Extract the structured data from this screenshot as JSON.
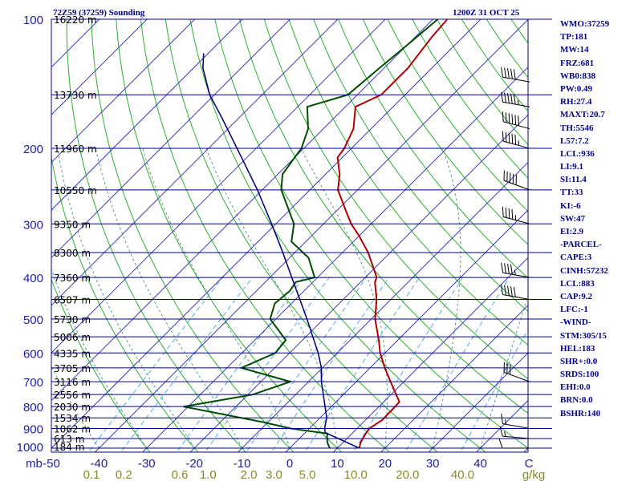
{
  "header": {
    "station_title": "72Z59 (37259) Sounding",
    "valid_time": "1200Z 31 OCT 25"
  },
  "stats": [
    "WMO:37259",
    "TP:181",
    "MW:14",
    "FRZ:681",
    "WB0:838",
    "PW:0.49",
    "RH:27.4",
    "MAXT:20.7",
    "TH:5546",
    "L57:7.2",
    "LCL:936",
    "LI:9.1",
    "SI:11.4",
    "TT:33",
    "KI:-6",
    "SW:47",
    "EI:2.9",
    "-PARCEL-",
    "CAPE:3",
    "CINH:57232",
    "LCL:883",
    "CAP:9.2",
    "LFC:-1",
    "-WIND-",
    "STM:305/15",
    "HEL:183",
    "SHR+:0.0",
    "SRDS:100",
    "EHI:0.0",
    "BRN:0.0",
    "BSHR:140"
  ],
  "chart_data": {
    "type": "line",
    "subtype": "skew-T log-P sounding",
    "pressure_axis": {
      "unit_label": "mb",
      "scale": "log",
      "range": [
        1000,
        100
      ],
      "ticks": [
        100,
        200,
        300,
        400,
        500,
        600,
        700,
        800,
        900,
        1000
      ]
    },
    "temperature_axis": {
      "unit_label": "C",
      "range": [
        -50,
        50
      ],
      "ticks": [
        -50,
        -40,
        -30,
        -20,
        -10,
        0,
        10,
        20,
        30,
        40
      ]
    },
    "mixing_ratio_axis": {
      "unit_label": "g/kg",
      "ticks": [
        "0.1",
        "0.2",
        "0.6",
        "1.0",
        "2.0",
        "3.0",
        "5.0",
        "10.0",
        "20.0",
        "40.0"
      ]
    },
    "height_labels": [
      {
        "p": 100,
        "label": "16220 m"
      },
      {
        "p": 150,
        "label": "13730 m"
      },
      {
        "p": 200,
        "label": "11960 m"
      },
      {
        "p": 250,
        "label": "10550 m"
      },
      {
        "p": 300,
        "label": "9350 m"
      },
      {
        "p": 350,
        "label": "8300 m"
      },
      {
        "p": 400,
        "label": "7360 m"
      },
      {
        "p": 450,
        "label": "6507 m"
      },
      {
        "p": 500,
        "label": "5730 m"
      },
      {
        "p": 550,
        "label": "5006 m"
      },
      {
        "p": 600,
        "label": "4335 m"
      },
      {
        "p": 650,
        "label": "3705 m"
      },
      {
        "p": 700,
        "label": "3116 m"
      },
      {
        "p": 750,
        "label": "2556 m"
      },
      {
        "p": 800,
        "label": "2030 m"
      },
      {
        "p": 850,
        "label": "1534 m"
      },
      {
        "p": 900,
        "label": "1062 m"
      },
      {
        "p": 950,
        "label": "613 m"
      },
      {
        "p": 1000,
        "label": "184 m"
      }
    ],
    "series": [
      {
        "color": "#b20000",
        "points": [
          [
            1000,
            14.6
          ],
          [
            970,
            13.7
          ],
          [
            925,
            12.9
          ],
          [
            900,
            12.6
          ],
          [
            860,
            13.5
          ],
          [
            800,
            13.4
          ],
          [
            780,
            13.3
          ],
          [
            700,
            7.2
          ],
          [
            650,
            3.1
          ],
          [
            600,
            -1
          ],
          [
            560,
            -4
          ],
          [
            500,
            -9.2
          ],
          [
            450,
            -13
          ],
          [
            410,
            -17
          ],
          [
            400,
            -17.6
          ],
          [
            350,
            -24.6
          ],
          [
            320,
            -30
          ],
          [
            300,
            -34.2
          ],
          [
            280,
            -38
          ],
          [
            250,
            -44.1
          ],
          [
            230,
            -47
          ],
          [
            210,
            -51
          ],
          [
            200,
            -51.5
          ],
          [
            180,
            -53.7
          ],
          [
            160,
            -57.9
          ],
          [
            150,
            -55
          ],
          [
            130,
            -55
          ],
          [
            110,
            -56.5
          ],
          [
            100,
            -57
          ]
        ]
      },
      {
        "color": "#004d00",
        "points": [
          [
            1000,
            8.4
          ],
          [
            970,
            6.7
          ],
          [
            940,
            5.4
          ],
          [
            925,
            4.9
          ],
          [
            900,
            -3.9
          ],
          [
            870,
            -11
          ],
          [
            800,
            -31
          ],
          [
            750,
            -19
          ],
          [
            700,
            -13.8
          ],
          [
            650,
            -27
          ],
          [
            600,
            -23
          ],
          [
            560,
            -23.5
          ],
          [
            500,
            -31.2
          ],
          [
            460,
            -33.5
          ],
          [
            430,
            -33
          ],
          [
            410,
            -33.6
          ],
          [
            400,
            -30.6
          ],
          [
            360,
            -36
          ],
          [
            330,
            -43
          ],
          [
            300,
            -46.2
          ],
          [
            250,
            -56
          ],
          [
            230,
            -59
          ],
          [
            210,
            -60
          ],
          [
            200,
            -60.5
          ],
          [
            180,
            -63.2
          ],
          [
            160,
            -68
          ],
          [
            150,
            -62
          ],
          [
            130,
            -61
          ],
          [
            115,
            -60
          ],
          [
            100,
            -59
          ]
        ]
      },
      {
        "color": "#1a1aa8",
        "points": [
          [
            1000,
            14.6
          ],
          [
            920,
            4.2
          ],
          [
            900,
            3.2
          ],
          [
            850,
            1.4
          ],
          [
            750,
            -4.2
          ],
          [
            700,
            -7.3
          ],
          [
            650,
            -10.2
          ],
          [
            600,
            -14
          ],
          [
            500,
            -23.5
          ],
          [
            450,
            -29.1
          ],
          [
            400,
            -35.4
          ],
          [
            350,
            -42.5
          ],
          [
            300,
            -50.9
          ],
          [
            250,
            -61
          ],
          [
            200,
            -74
          ],
          [
            170,
            -83.5
          ],
          [
            150,
            -91
          ],
          [
            130,
            -98
          ],
          [
            120,
            -101
          ]
        ]
      },
      {
        "color": "#000080",
        "points": [
          [
            1000,
            14.6
          ],
          [
            920,
            4.2
          ],
          [
            900,
            3.2
          ],
          [
            850,
            1.4
          ],
          [
            750,
            -4.2
          ],
          [
            700,
            -7.3
          ],
          [
            650,
            -10.2
          ],
          [
            600,
            -14
          ],
          [
            500,
            -23.5
          ],
          [
            450,
            -29.1
          ],
          [
            400,
            -35.4
          ],
          [
            350,
            -42.5
          ],
          [
            300,
            -50.9
          ],
          [
            250,
            -61
          ],
          [
            200,
            -74
          ],
          [
            170,
            -83.5
          ],
          [
            150,
            -91
          ],
          [
            130,
            -98
          ],
          [
            120,
            -101
          ]
        ]
      }
    ],
    "wind_barbs": [
      {
        "p": 1000,
        "dir": 270,
        "spd": 10
      },
      {
        "p": 950,
        "dir": 275,
        "spd": 15
      },
      {
        "p": 900,
        "dir": 280,
        "spd": 15
      },
      {
        "p": 700,
        "dir": 290,
        "spd": 30
      },
      {
        "p": 450,
        "dir": 280,
        "spd": 50
      },
      {
        "p": 400,
        "dir": 280,
        "spd": 45
      },
      {
        "p": 300,
        "dir": 285,
        "spd": 45
      },
      {
        "p": 250,
        "dir": 290,
        "spd": 50
      },
      {
        "p": 200,
        "dir": 285,
        "spd": 55
      },
      {
        "p": 180,
        "dir": 285,
        "spd": 60
      },
      {
        "p": 160,
        "dir": 280,
        "spd": 55
      },
      {
        "p": 140,
        "dir": 280,
        "spd": 50
      }
    ],
    "colors": {
      "isobars": "#00008b",
      "isotherms": "#3a3ab8",
      "dry_adiabats": "#2bb02b",
      "moist_adiabats": "#5a9a8a",
      "mixing_ratio": "#55aadd"
    }
  }
}
